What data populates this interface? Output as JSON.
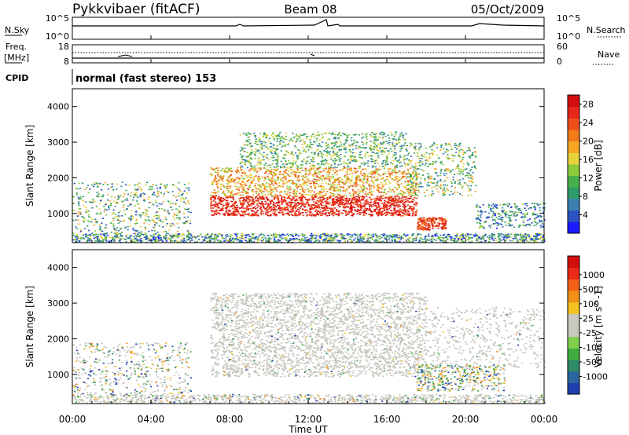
{
  "header": {
    "station": "Pykkvibaer (fitACF)",
    "beam": "Beam 08",
    "date": "05/Oct/2009"
  },
  "top_panels": {
    "nsky_label": "N.Sky",
    "nsearch_label": "N.Search",
    "nsky_ticks": [
      "10^5",
      "10^0"
    ],
    "nsearch_ticks": [
      "10^5",
      "10^0"
    ],
    "freq_label_1": "Freq.",
    "freq_label_2": "[MHz]",
    "freq_ticks": [
      "18",
      "8"
    ],
    "nave_label": "Nave",
    "nave_ticks": [
      "60",
      "0"
    ],
    "cpid_label": "CPID",
    "cpid_text": "normal (fast stereo) 153"
  },
  "colors": {
    "power_scale": [
      "#1a1aff",
      "#2a52c0",
      "#3a7fb0",
      "#2f9a6a",
      "#46b04a",
      "#8ccb3a",
      "#e6d23a",
      "#f5a623",
      "#f27a18",
      "#ef4f1a",
      "#e8261a",
      "#d40d0d"
    ],
    "velocity_scale": [
      "#1f3fb0",
      "#2a66a0",
      "#2f8a6a",
      "#3fae3f",
      "#7fcf4a",
      "#c8c8c0",
      "#c8c8c0",
      "#f2c21f",
      "#f29018",
      "#f25f18",
      "#ea2a18",
      "#d40d0d"
    ]
  },
  "chart_data": [
    {
      "type": "heatmap",
      "title": "Power",
      "xlabel": "Time UT",
      "ylabel": "Slant Range [km]",
      "x_ticks": [
        "00:00",
        "04:00",
        "08:00",
        "12:00",
        "16:00",
        "20:00",
        "00:00"
      ],
      "xlim_hours": [
        0,
        24
      ],
      "ylim_km": [
        180,
        4500
      ],
      "y_ticks": [
        1000,
        2000,
        3000,
        4000
      ],
      "colorbar_label": "Power [dB]",
      "colorbar_unit": "dB",
      "colorbar_ticks": [
        4,
        8,
        12,
        16,
        20,
        24,
        28
      ],
      "colorbar_range": [
        0,
        30
      ]
    },
    {
      "type": "heatmap",
      "title": "Velocity",
      "xlabel": "Time UT",
      "ylabel": "Slant Range [km]",
      "x_ticks": [
        "00:00",
        "04:00",
        "08:00",
        "12:00",
        "16:00",
        "20:00",
        "00:00"
      ],
      "xlim_hours": [
        0,
        24
      ],
      "ylim_km": [
        180,
        4500
      ],
      "y_ticks": [
        1000,
        2000,
        3000,
        4000
      ],
      "colorbar_label": "Velocity [m s^-1]",
      "colorbar_ticks": [
        1000,
        500,
        100,
        25,
        -25,
        -100,
        -500,
        -1000
      ]
    }
  ]
}
